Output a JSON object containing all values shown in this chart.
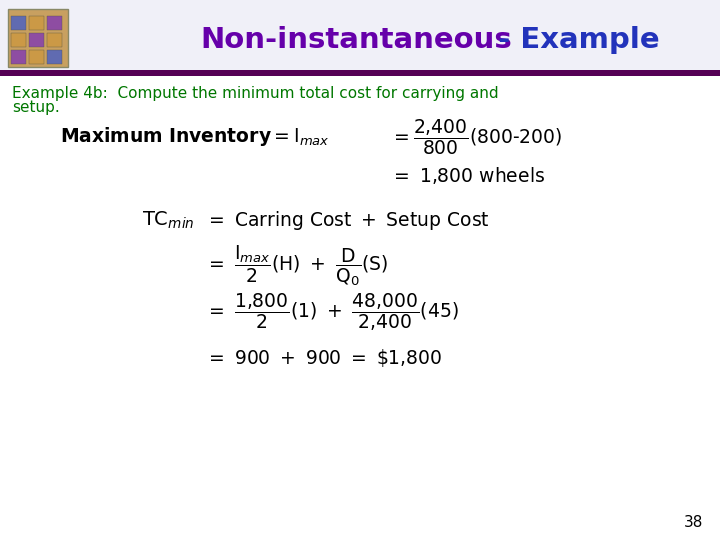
{
  "title_part1": "Non-instantaneous",
  "title_part2": " - Example",
  "title_color1": "#6600aa",
  "title_color2": "#2233bb",
  "subtitle_line1": "Example 4b:  Compute the minimum total cost for carrying and",
  "subtitle_line2": "setup.",
  "subtitle_color": "#007700",
  "header_bar_color": "#550055",
  "bg_color": "#ffffff",
  "slide_number": "38",
  "icon_colors": [
    "#8844aa",
    "#cc9944",
    "#5566bb",
    "#aa7733"
  ],
  "icon_bg": "#c8a060"
}
